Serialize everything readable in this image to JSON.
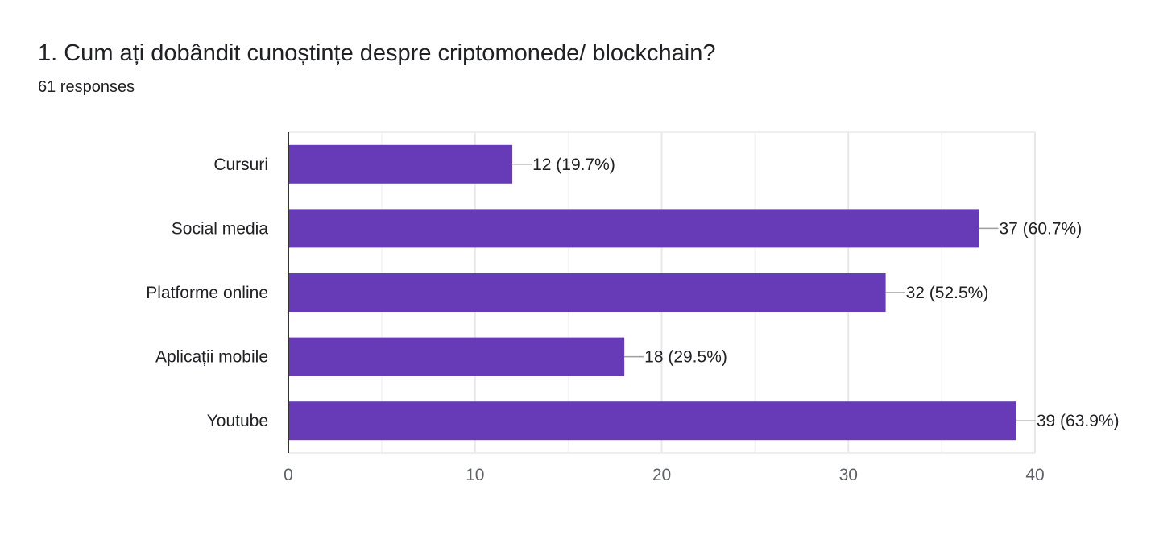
{
  "question": {
    "title": "1. Cum ați dobândit cunoștințe despre criptomonede/ blockchain?",
    "responses": "61 responses"
  },
  "colors": {
    "bar": "#673ab7",
    "gridline": "#eeeeee",
    "axis": "#333333",
    "leader": "#9e9e9e"
  },
  "chart_data": {
    "type": "bar",
    "orientation": "horizontal",
    "categories": [
      "Cursuri",
      "Social media",
      "Platforme online",
      "Aplicații mobile",
      "Youtube"
    ],
    "values": [
      12,
      37,
      32,
      18,
      39
    ],
    "value_labels": [
      "12 (19.7%)",
      "37 (60.7%)",
      "32 (52.5%)",
      "18 (29.5%)",
      "39 (63.9%)"
    ],
    "xlim": [
      0,
      40
    ],
    "xticks": [
      0,
      10,
      20,
      30,
      40
    ],
    "grid": true
  }
}
